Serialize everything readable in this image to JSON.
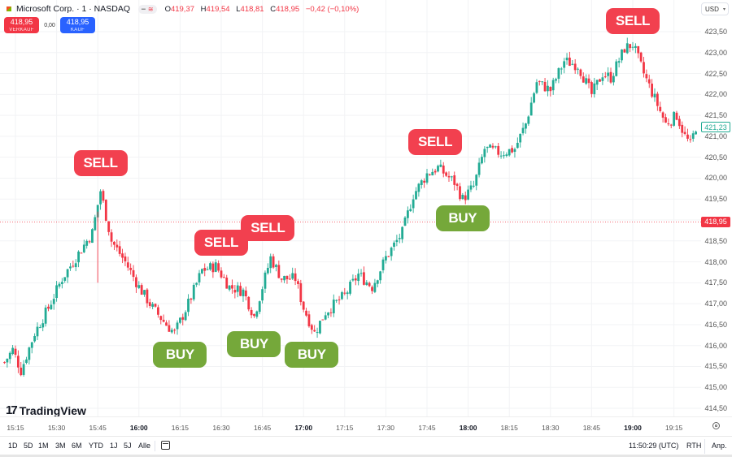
{
  "header": {
    "symbol": "Microsoft Corp. · 1 · NASDAQ",
    "pill_icons": [
      "minus-icon",
      "wave-icon"
    ],
    "ohlc": {
      "o_label": "O",
      "o": "419,37",
      "h_label": "H",
      "h": "419,54",
      "l_label": "L",
      "l": "418,81",
      "c_label": "C",
      "c": "418,95",
      "change": "−0,42 (−0,10%)"
    }
  },
  "trade": {
    "sell_price": "418,95",
    "sell_label": "VERKAUF",
    "spread": "0,00",
    "buy_price": "418,95",
    "buy_label": "KAUF"
  },
  "currency": "USD",
  "price_axis": {
    "labels": [
      "423,50",
      "423,00",
      "422,50",
      "422,00",
      "421,50",
      "421,00",
      "420,50",
      "420,00",
      "419,50",
      "418,50",
      "418,00",
      "417,50",
      "417,00",
      "416,50",
      "416,00",
      "415,50",
      "415,00",
      "414,50"
    ],
    "current_price_tag": "421,23",
    "crosshair_price_tag": "418,95"
  },
  "time_axis": {
    "labels": [
      {
        "t": "15:15",
        "bold": false
      },
      {
        "t": "15:30",
        "bold": false
      },
      {
        "t": "15:45",
        "bold": false
      },
      {
        "t": "16:00",
        "bold": true
      },
      {
        "t": "16:15",
        "bold": false
      },
      {
        "t": "16:30",
        "bold": false
      },
      {
        "t": "16:45",
        "bold": false
      },
      {
        "t": "17:00",
        "bold": true
      },
      {
        "t": "17:15",
        "bold": false
      },
      {
        "t": "17:30",
        "bold": false
      },
      {
        "t": "17:45",
        "bold": false
      },
      {
        "t": "18:00",
        "bold": true
      },
      {
        "t": "18:15",
        "bold": false
      },
      {
        "t": "18:30",
        "bold": false
      },
      {
        "t": "18:45",
        "bold": false
      },
      {
        "t": "19:00",
        "bold": true
      },
      {
        "t": "19:15",
        "bold": false
      }
    ]
  },
  "signals": [
    {
      "label": "SELL",
      "type": "sell",
      "time": "15:46",
      "price": 419.85
    },
    {
      "label": "BUY",
      "type": "buy",
      "time": "16:15",
      "price": 416.25
    },
    {
      "label": "SELL",
      "type": "sell",
      "time": "16:30",
      "price": 417.95
    },
    {
      "label": "BUY",
      "type": "buy",
      "time": "16:42",
      "price": 416.5
    },
    {
      "label": "SELL",
      "type": "sell",
      "time": "16:47",
      "price": 418.3
    },
    {
      "label": "BUY",
      "type": "buy",
      "time": "17:03",
      "price": 416.25
    },
    {
      "label": "SELL",
      "type": "sell",
      "time": "17:48",
      "price": 420.35
    },
    {
      "label": "BUY",
      "type": "buy",
      "time": "17:58",
      "price": 419.5
    },
    {
      "label": "SELL",
      "type": "sell",
      "time": "19:00",
      "price": 423.25
    }
  ],
  "logo": "TradingView",
  "bottom_bar": {
    "ranges": [
      "1D",
      "5D",
      "1M",
      "3M",
      "6M",
      "YTD",
      "1J",
      "5J",
      "Alle"
    ],
    "clock": "11:50:29 (UTC)",
    "session": "RTH",
    "adjust": "Anp."
  },
  "colors": {
    "up": "#22ab94",
    "down": "#f23645",
    "sell_signal": "#f2404f",
    "buy_signal": "#75a83a",
    "buy_button": "#2962ff",
    "sell_button": "#f23645"
  },
  "chart_data": {
    "type": "candlestick",
    "title": "Microsoft Corp. · 1 · NASDAQ",
    "interval": "1 minute",
    "xlabel": "",
    "ylabel": "USD",
    "ylim": [
      414.4,
      423.7
    ],
    "grid": true,
    "x_ticks": [
      "15:15",
      "15:30",
      "15:45",
      "16:00",
      "16:15",
      "16:30",
      "16:45",
      "17:00",
      "17:15",
      "17:30",
      "17:45",
      "18:00",
      "18:15",
      "18:30",
      "18:45",
      "19:00",
      "19:15"
    ],
    "close_path": [
      {
        "t": "15:11",
        "p": 415.6
      },
      {
        "t": "15:14",
        "p": 415.9
      },
      {
        "t": "15:17",
        "p": 415.4
      },
      {
        "t": "15:22",
        "p": 416.3
      },
      {
        "t": "15:27",
        "p": 416.9
      },
      {
        "t": "15:32",
        "p": 417.6
      },
      {
        "t": "15:37",
        "p": 418.1
      },
      {
        "t": "15:43",
        "p": 418.7
      },
      {
        "t": "15:46",
        "p": 419.7
      },
      {
        "t": "15:50",
        "p": 418.5
      },
      {
        "t": "15:55",
        "p": 418.0
      },
      {
        "t": "16:00",
        "p": 417.4
      },
      {
        "t": "16:05",
        "p": 416.9
      },
      {
        "t": "16:10",
        "p": 416.5
      },
      {
        "t": "16:13",
        "p": 416.3
      },
      {
        "t": "16:18",
        "p": 417.0
      },
      {
        "t": "16:23",
        "p": 417.8
      },
      {
        "t": "16:28",
        "p": 417.9
      },
      {
        "t": "16:33",
        "p": 417.4
      },
      {
        "t": "16:38",
        "p": 417.3
      },
      {
        "t": "16:42",
        "p": 416.7
      },
      {
        "t": "16:48",
        "p": 418.1
      },
      {
        "t": "16:52",
        "p": 417.6
      },
      {
        "t": "16:57",
        "p": 417.6
      },
      {
        "t": "17:00",
        "p": 416.9
      },
      {
        "t": "17:04",
        "p": 416.3
      },
      {
        "t": "17:08",
        "p": 416.8
      },
      {
        "t": "17:15",
        "p": 417.2
      },
      {
        "t": "17:20",
        "p": 417.7
      },
      {
        "t": "17:25",
        "p": 417.4
      },
      {
        "t": "17:30",
        "p": 418.1
      },
      {
        "t": "17:36",
        "p": 418.7
      },
      {
        "t": "17:40",
        "p": 419.6
      },
      {
        "t": "17:45",
        "p": 420.1
      },
      {
        "t": "17:49",
        "p": 420.25
      },
      {
        "t": "17:55",
        "p": 419.9
      },
      {
        "t": "17:58",
        "p": 419.5
      },
      {
        "t": "18:02",
        "p": 419.8
      },
      {
        "t": "18:06",
        "p": 420.7
      },
      {
        "t": "18:12",
        "p": 420.6
      },
      {
        "t": "18:17",
        "p": 420.7
      },
      {
        "t": "18:21",
        "p": 421.3
      },
      {
        "t": "18:25",
        "p": 422.3
      },
      {
        "t": "18:30",
        "p": 422.1
      },
      {
        "t": "18:35",
        "p": 422.8
      },
      {
        "t": "18:40",
        "p": 422.7
      },
      {
        "t": "18:45",
        "p": 422.0
      },
      {
        "t": "18:49",
        "p": 422.5
      },
      {
        "t": "18:52",
        "p": 422.4
      },
      {
        "t": "18:57",
        "p": 423.1
      },
      {
        "t": "19:00",
        "p": 423.2
      },
      {
        "t": "19:04",
        "p": 422.5
      },
      {
        "t": "19:08",
        "p": 421.9
      },
      {
        "t": "19:12",
        "p": 421.3
      },
      {
        "t": "19:16",
        "p": 421.5
      },
      {
        "t": "19:19",
        "p": 421.0
      },
      {
        "t": "19:21",
        "p": 420.8
      },
      {
        "t": "19:23",
        "p": 421.23
      }
    ],
    "last_price": 421.23,
    "reference_line": 418.95
  }
}
